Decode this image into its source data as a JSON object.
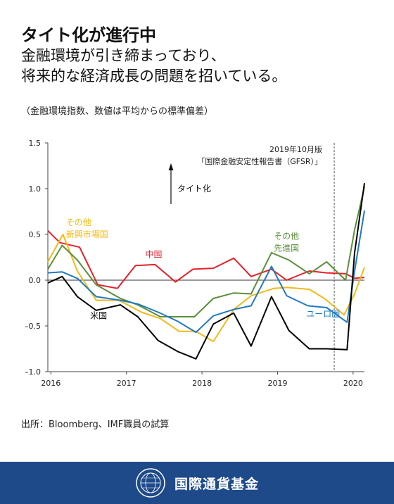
{
  "header": {
    "title": "タイト化が進行中",
    "subtitle_line1": "金融環境が引き締まっており、",
    "subtitle_line2": "将来的な経済成長の問題を招いている。"
  },
  "unit_note": "（金融環境指数、数値は平均からの標準偏差）",
  "annotations": {
    "report_line1": "2019年10月版",
    "report_line2": "「国際金融安定性報告書（GFSR）」",
    "arrow_label": "タイト化"
  },
  "source": "出所：Bloomberg、IMF職員の試算",
  "footer": {
    "org_name": "国際通貨基金",
    "seal_text": "INTERNATIONAL MONETARY FUND"
  },
  "chart_data": {
    "type": "line",
    "title": "タイト化が進行中",
    "ylabel": "",
    "xlabel": "",
    "ylim": [
      -1.0,
      1.5
    ],
    "yticks": [
      1.5,
      1.0,
      0.5,
      0.0,
      -0.5,
      -1.0
    ],
    "ytick_labels": [
      "1.5",
      "1.0",
      "0.5",
      "0.0",
      "–0.5",
      "–1.0"
    ],
    "xlim": [
      2015.96,
      2020.15
    ],
    "xticks": [
      2016,
      2017,
      2018,
      2019,
      2020
    ],
    "xtick_labels": [
      "2016",
      "2017",
      "2018",
      "2019",
      "2020"
    ],
    "vline_x": 2019.75,
    "zero_line": true,
    "grid": false,
    "series": [
      {
        "name": "中国",
        "color": "#e8202a",
        "x": [
          2015.96,
          2016.12,
          2016.38,
          2016.62,
          2016.88,
          2017.12,
          2017.38,
          2017.65,
          2017.88,
          2018.15,
          2018.42,
          2018.65,
          2018.92,
          2019.12,
          2019.42,
          2019.65,
          2019.9,
          2020.02,
          2020.15
        ],
        "y": [
          0.54,
          0.41,
          0.36,
          -0.05,
          -0.09,
          0.16,
          0.17,
          -0.02,
          0.12,
          0.13,
          0.24,
          0.04,
          0.12,
          0.0,
          0.1,
          0.08,
          0.07,
          0.02,
          0.03
        ]
      },
      {
        "name": "その他新興市場国",
        "color": "#f6b818",
        "x": [
          2015.96,
          2016.16,
          2016.35,
          2016.6,
          2016.9,
          2017.2,
          2017.45,
          2017.7,
          2017.92,
          2018.15,
          2018.42,
          2018.65,
          2018.95,
          2019.12,
          2019.42,
          2019.62,
          2019.88,
          2020.02,
          2020.15
        ],
        "y": [
          0.2,
          0.5,
          0.1,
          -0.22,
          -0.22,
          -0.35,
          -0.42,
          -0.56,
          -0.56,
          -0.67,
          -0.32,
          -0.17,
          -0.09,
          -0.08,
          -0.1,
          -0.2,
          -0.38,
          -0.15,
          0.14
        ]
      },
      {
        "name": "その他先進国",
        "color": "#5b8f3c",
        "x": [
          2015.96,
          2016.15,
          2016.35,
          2016.6,
          2016.92,
          2017.15,
          2017.45,
          2017.72,
          2017.9,
          2018.15,
          2018.42,
          2018.65,
          2018.92,
          2019.15,
          2019.42,
          2019.65,
          2019.9,
          2020.02,
          2020.15
        ],
        "y": [
          0.12,
          0.38,
          0.22,
          -0.05,
          -0.2,
          -0.27,
          -0.4,
          -0.4,
          -0.4,
          -0.2,
          -0.14,
          -0.15,
          0.3,
          0.22,
          0.07,
          0.2,
          0.0,
          0.55,
          1.02
        ]
      },
      {
        "name": "ユーロ圏",
        "color": "#1f7ac0",
        "x": [
          2015.96,
          2016.15,
          2016.35,
          2016.6,
          2016.92,
          2017.15,
          2017.42,
          2017.68,
          2017.92,
          2018.15,
          2018.42,
          2018.65,
          2018.92,
          2019.12,
          2019.4,
          2019.65,
          2019.92,
          2020.02,
          2020.15
        ],
        "y": [
          0.08,
          0.09,
          0.02,
          -0.18,
          -0.22,
          -0.26,
          -0.35,
          -0.45,
          -0.57,
          -0.39,
          -0.32,
          -0.28,
          0.15,
          -0.17,
          -0.28,
          -0.3,
          -0.46,
          0.1,
          0.76
        ]
      },
      {
        "name": "米国",
        "color": "#000000",
        "x": [
          2015.96,
          2016.15,
          2016.35,
          2016.6,
          2016.92,
          2017.15,
          2017.42,
          2017.68,
          2017.92,
          2018.15,
          2018.42,
          2018.65,
          2018.92,
          2019.15,
          2019.42,
          2019.65,
          2019.92,
          2020.02,
          2020.15
        ],
        "y": [
          -0.03,
          0.04,
          -0.18,
          -0.33,
          -0.27,
          -0.4,
          -0.66,
          -0.78,
          -0.86,
          -0.48,
          -0.36,
          -0.72,
          -0.18,
          -0.55,
          -0.75,
          -0.75,
          -0.76,
          0.3,
          1.06
        ]
      }
    ],
    "series_labels": [
      {
        "series": 0,
        "lines": [
          "中国"
        ],
        "x": 2017.25,
        "y": 0.25
      },
      {
        "series": 1,
        "lines": [
          "その他",
          "新興市場国"
        ],
        "x": 2016.2,
        "y": 0.6
      },
      {
        "series": 2,
        "lines": [
          "その他",
          "先進国"
        ],
        "x": 2018.95,
        "y": 0.45
      },
      {
        "series": 3,
        "lines": [
          "ユーロ圏"
        ],
        "x": 2019.38,
        "y": -0.4
      },
      {
        "series": 4,
        "lines": [
          "米国"
        ],
        "x": 2016.52,
        "y": -0.42
      }
    ]
  }
}
